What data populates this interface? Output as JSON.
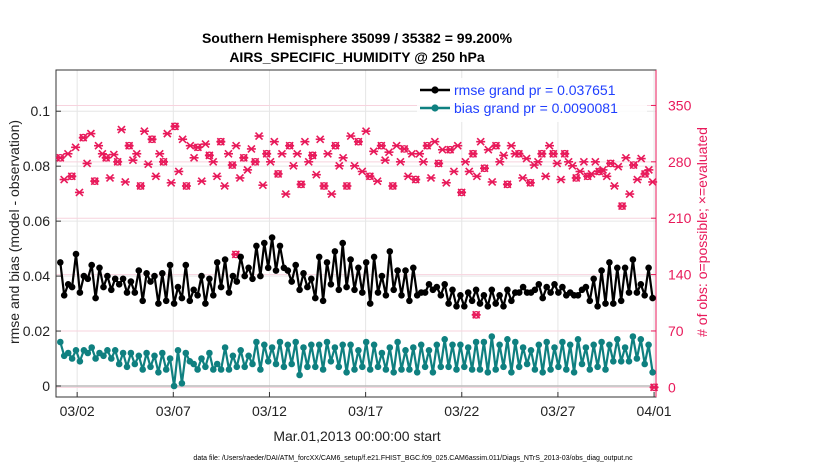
{
  "chart_data": {
    "type": "line",
    "title_line1": "Southern Hemisphere 35099 / 35382 = 99.200%",
    "title_line2": "AIRS_SPECIFIC_HUMIDITY @ 250 hPa",
    "xlabel": "Mar.01,2013 00:00:00 start",
    "ylabel_left": "rmse and bias (model - observation)",
    "ylabel_right": "# of obs: o=possible; ×=evaluated",
    "footer": "data file: /Users/raeder/DAI/ATM_forcXX/CAM6_setup/f.e21.FHIST_BGC.f09_025.CAM6assim.011/Diags_NTrS_2013-03/obs_diag_output.nc",
    "x_tick_labels": [
      "03/02",
      "03/07",
      "03/12",
      "03/17",
      "03/22",
      "03/27",
      "04/01"
    ],
    "x_tick_days": [
      1,
      6,
      11,
      16,
      21,
      26,
      31
    ],
    "y_left_ticks": [
      "0",
      "0.02",
      "0.04",
      "0.06",
      "0.08",
      "0.1"
    ],
    "y_left_tick_values": [
      0,
      0.02,
      0.04,
      0.06,
      0.08,
      0.1
    ],
    "y_right_ticks": [
      "0",
      "70",
      "140",
      "210",
      "280",
      "350"
    ],
    "y_right_tick_values": [
      0,
      70,
      140,
      210,
      280,
      350
    ],
    "xlim": [
      -0.1,
      31.1
    ],
    "ylim_left": [
      -0.004,
      0.115
    ],
    "ylim_right": [
      -12,
      394
    ],
    "grid": true,
    "legend_position": "top-right",
    "colors": {
      "rmse": "#000000",
      "bias": "#0f8080",
      "obs": "#e8195a",
      "legend_text": "#1f3fff"
    },
    "series": [
      {
        "name": "rmse grand pr = 0.037651",
        "key": "rmse",
        "values": [
          0.045,
          0.033,
          0.037,
          0.036,
          0.048,
          0.034,
          0.04,
          0.039,
          0.044,
          0.032,
          0.043,
          0.036,
          0.04,
          0.035,
          0.039,
          0.037,
          0.039,
          0.034,
          0.038,
          0.034,
          0.042,
          0.031,
          0.041,
          0.038,
          0.04,
          0.03,
          0.041,
          0.031,
          0.044,
          0.03,
          0.036,
          0.032,
          0.044,
          0.031,
          0.035,
          0.033,
          0.04,
          0.03,
          0.039,
          0.033,
          0.045,
          0.036,
          0.046,
          0.034,
          0.04,
          0.038,
          0.047,
          0.04,
          0.043,
          0.039,
          0.051,
          0.04,
          0.052,
          0.043,
          0.054,
          0.042,
          0.051,
          0.043,
          0.042,
          0.038,
          0.044,
          0.035,
          0.041,
          0.036,
          0.039,
          0.032,
          0.047,
          0.031,
          0.045,
          0.037,
          0.049,
          0.035,
          0.052,
          0.036,
          0.046,
          0.035,
          0.043,
          0.034,
          0.045,
          0.03,
          0.047,
          0.034,
          0.04,
          0.033,
          0.049,
          0.035,
          0.042,
          0.033,
          0.042,
          0.031,
          0.043,
          0.033,
          0.034,
          0.034,
          0.037,
          0.035,
          0.036,
          0.033,
          0.037,
          0.03,
          0.035,
          0.029,
          0.033,
          0.029,
          0.034,
          0.031,
          0.035,
          0.03,
          0.033,
          0.029,
          0.035,
          0.03,
          0.033,
          0.029,
          0.035,
          0.031,
          0.034,
          0.034,
          0.036,
          0.034,
          0.034,
          0.035,
          0.037,
          0.032,
          0.036,
          0.034,
          0.037,
          0.034,
          0.036,
          0.033,
          0.034,
          0.033,
          0.033,
          0.035,
          0.036,
          0.031,
          0.039,
          0.029,
          0.042,
          0.03,
          0.045,
          0.03,
          0.043,
          0.031,
          0.043,
          0.034,
          0.046,
          0.034,
          0.037,
          0.033,
          0.043,
          0.032
        ]
      },
      {
        "name": "bias grand pr = 0.0090081",
        "key": "bias",
        "values": [
          0.016,
          0.011,
          0.012,
          0.01,
          0.013,
          0.009,
          0.013,
          0.012,
          0.014,
          0.01,
          0.012,
          0.011,
          0.013,
          0.01,
          0.013,
          0.008,
          0.012,
          0.007,
          0.012,
          0.008,
          0.011,
          0.006,
          0.012,
          0.007,
          0.011,
          0.005,
          0.012,
          0.006,
          0.01,
          0.0,
          0.013,
          0.001,
          0.012,
          0.009,
          0.008,
          0.006,
          0.01,
          0.007,
          0.012,
          0.006,
          0.008,
          0.006,
          0.014,
          0.006,
          0.011,
          0.007,
          0.013,
          0.007,
          0.011,
          0.008,
          0.016,
          0.006,
          0.015,
          0.009,
          0.014,
          0.008,
          0.016,
          0.007,
          0.015,
          0.008,
          0.016,
          0.004,
          0.014,
          0.007,
          0.015,
          0.007,
          0.015,
          0.006,
          0.016,
          0.009,
          0.014,
          0.007,
          0.015,
          0.005,
          0.015,
          0.006,
          0.013,
          0.007,
          0.016,
          0.006,
          0.015,
          0.007,
          0.012,
          0.006,
          0.014,
          0.005,
          0.016,
          0.006,
          0.013,
          0.006,
          0.014,
          0.005,
          0.015,
          0.007,
          0.013,
          0.005,
          0.015,
          0.007,
          0.017,
          0.007,
          0.015,
          0.006,
          0.015,
          0.007,
          0.014,
          0.006,
          0.016,
          0.006,
          0.016,
          0.005,
          0.018,
          0.006,
          0.015,
          0.007,
          0.017,
          0.005,
          0.016,
          0.007,
          0.014,
          0.008,
          0.013,
          0.006,
          0.015,
          0.005,
          0.016,
          0.006,
          0.014,
          0.007,
          0.016,
          0.006,
          0.015,
          0.005,
          0.017,
          0.008,
          0.014,
          0.006,
          0.015,
          0.007,
          0.016,
          0.006,
          0.015,
          0.009,
          0.017,
          0.009,
          0.014,
          0.009,
          0.018,
          0.01,
          0.017,
          0.008,
          0.015,
          0.005
        ]
      },
      {
        "name": "# of obs",
        "key": "obs",
        "values": [
          285,
          258,
          290,
          262,
          298,
          242,
          310,
          278,
          315,
          256,
          300,
          290,
          285,
          260,
          289,
          280,
          320,
          255,
          300,
          282,
          290,
          250,
          318,
          277,
          308,
          262,
          290,
          280,
          315,
          254,
          324,
          268,
          308,
          250,
          300,
          285,
          298,
          256,
          302,
          288,
          280,
          262,
          305,
          250,
          290,
          276,
          300,
          260,
          285,
          270,
          296,
          280,
          312,
          251,
          290,
          280,
          305,
          265,
          290,
          240,
          300,
          275,
          290,
          252,
          305,
          280,
          288,
          264,
          308,
          250,
          290,
          240,
          300,
          275,
          285,
          250,
          312,
          275,
          305,
          268,
          318,
          262,
          293,
          256,
          300,
          282,
          292,
          250,
          300,
          280,
          296,
          262,
          290,
          258,
          290,
          280,
          300,
          260,
          305,
          278,
          295,
          254,
          295,
          268,
          300,
          242,
          280,
          268,
          290,
          262,
          305,
          272,
          295,
          255,
          300,
          280,
          288,
          252,
          300,
          290,
          290,
          260,
          284,
          254,
          276,
          280,
          290,
          262,
          300,
          290,
          278,
          258,
          290,
          280,
          275,
          260,
          268,
          280,
          262,
          265,
          280,
          268,
          270,
          262,
          278,
          250,
          274,
          225,
          285,
          240,
          276,
          258,
          284,
          265,
          270,
          255
        ]
      }
    ],
    "obs_extra_points": [
      {
        "x": 9.25,
        "value": 165
      },
      {
        "x": 21.75,
        "value": 90
      },
      {
        "x": 31.0,
        "value": 0
      }
    ]
  }
}
